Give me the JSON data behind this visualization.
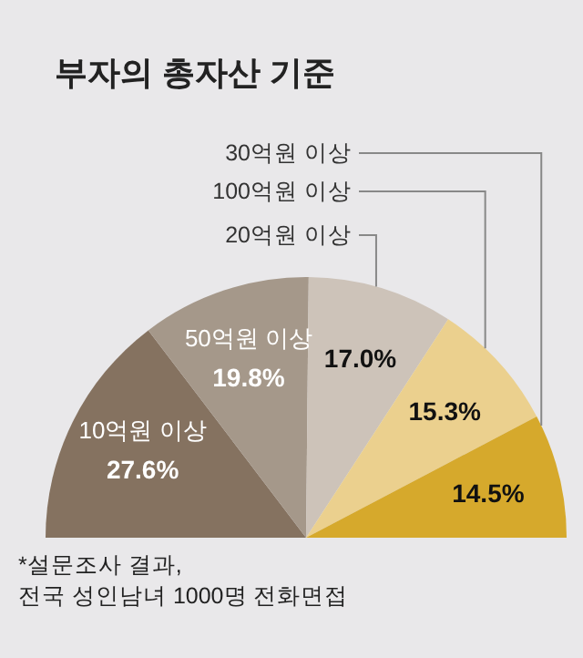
{
  "chart_data": {
    "type": "pie",
    "title": "부자의 총자산 기준",
    "categories": [
      "10억원 이상",
      "50억원 이상",
      "20억원 이상",
      "100억원 이상",
      "30억원 이상"
    ],
    "values": [
      27.6,
      19.8,
      17.0,
      15.3,
      14.5
    ],
    "colors": [
      "#857260",
      "#a5988a",
      "#cdc3b9",
      "#ebd08e",
      "#d6a92c"
    ],
    "value_labels": [
      "27.6%",
      "19.8%",
      "17.0%",
      "15.3%",
      "14.5%"
    ],
    "annotations": [
      "*설문조사 결과,",
      "전국 성인남녀 1000명 전화면접"
    ]
  }
}
